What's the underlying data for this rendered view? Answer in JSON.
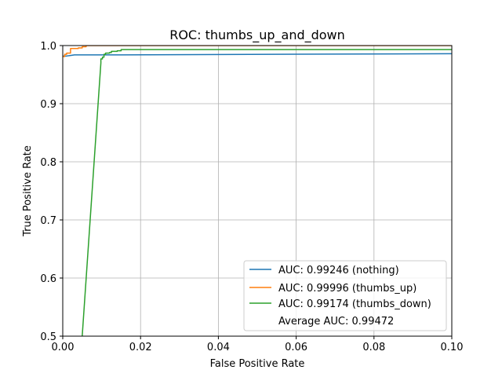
{
  "chart_data": {
    "type": "line",
    "title": "ROC: thumbs_up_and_down",
    "xlabel": "False Positive Rate",
    "ylabel": "True Positive Rate",
    "xlim": [
      0,
      0.1
    ],
    "ylim": [
      0.5,
      1.0
    ],
    "xticks": [
      0,
      0.02,
      0.04,
      0.06,
      0.08,
      0.1
    ],
    "xtick_labels": [
      "0.00",
      "0.02",
      "0.04",
      "0.06",
      "0.08",
      "0.10"
    ],
    "yticks": [
      0.5,
      0.6,
      0.7,
      0.8,
      0.9,
      1.0
    ],
    "ytick_labels": [
      "0.5",
      "0.6",
      "0.7",
      "0.8",
      "0.9",
      "1.0"
    ],
    "grid": true,
    "legend_position": "lower-right",
    "series": [
      {
        "name": "AUC: 0.99246 (nothing)",
        "color": "#1f77b4",
        "x": [
          0,
          0,
          0.001,
          0.002,
          0.003,
          0.015,
          0.1
        ],
        "y": [
          0.98,
          0.982,
          0.982,
          0.983,
          0.984,
          0.984,
          0.986
        ]
      },
      {
        "name": "AUC: 0.99996 (thumbs_up)",
        "color": "#ff7f0e",
        "x": [
          0,
          0,
          0.0005,
          0.0005,
          0.001,
          0.001,
          0.002,
          0.002,
          0.004,
          0.004,
          0.005,
          0.005,
          0.006,
          0.006,
          0.1
        ],
        "y": [
          0.98,
          0.981,
          0.981,
          0.985,
          0.985,
          0.987,
          0.987,
          0.995,
          0.995,
          0.996,
          0.996,
          0.998,
          0.998,
          1.0,
          1.0
        ]
      },
      {
        "name": "AUC: 0.99174 (thumbs_down)",
        "color": "#2ca02c",
        "x": [
          0.005,
          0.0098,
          0.0098,
          0.0102,
          0.0102,
          0.0106,
          0.0106,
          0.011,
          0.011,
          0.012,
          0.012,
          0.0125,
          0.0125,
          0.014,
          0.014,
          0.015,
          0.015,
          0.1
        ],
        "y": [
          0.5,
          0.97,
          0.977,
          0.977,
          0.98,
          0.98,
          0.985,
          0.985,
          0.987,
          0.987,
          0.988,
          0.988,
          0.99,
          0.99,
          0.991,
          0.991,
          0.993,
          0.993
        ]
      }
    ],
    "legend_extra": "Average AUC: 0.99472"
  }
}
